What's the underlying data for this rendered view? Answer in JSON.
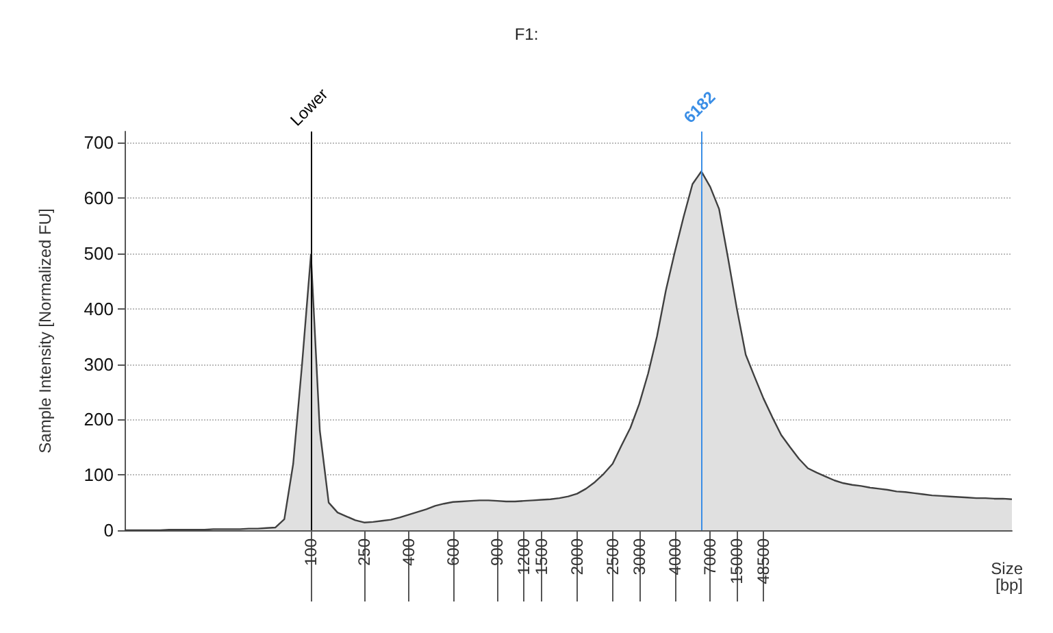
{
  "chart_data": {
    "type": "area",
    "title": "F1:",
    "xlabel": "Size\n[bp]",
    "ylabel": "Sample Intensity [Normalized FU]",
    "categories": [
      null,
      null,
      null,
      null,
      null,
      null,
      null,
      null,
      null,
      null,
      null,
      null,
      null,
      null,
      null,
      null,
      null,
      null,
      null,
      null,
      null,
      "100",
      null,
      null,
      null,
      null,
      null,
      "250",
      null,
      null,
      null,
      null,
      "400",
      null,
      null,
      null,
      null,
      "600",
      null,
      null,
      null,
      null,
      "900",
      null,
      null,
      "1200",
      null,
      "1500",
      null,
      null,
      null,
      "2000",
      null,
      null,
      null,
      "2500",
      null,
      null,
      "3000",
      null,
      null,
      null,
      "4000",
      null,
      null,
      null,
      "7000",
      null,
      null,
      "15000",
      null,
      null,
      "48500",
      null,
      null,
      null,
      null,
      null,
      null,
      null,
      null,
      null,
      null,
      null,
      null,
      null,
      null,
      null,
      null,
      null,
      null,
      null,
      null,
      null,
      null,
      null,
      null,
      null,
      null,
      null,
      null
    ],
    "series": [
      {
        "color": "#404040",
        "values": [
          0,
          0,
          0,
          0,
          0,
          1,
          1,
          1,
          1,
          1,
          2,
          2,
          2,
          2,
          3,
          3,
          4,
          5,
          20,
          120,
          300,
          498,
          180,
          50,
          32,
          25,
          18,
          14,
          15,
          17,
          19,
          23,
          28,
          33,
          38,
          44,
          48,
          51,
          52,
          53,
          54,
          54,
          53,
          52,
          52,
          53,
          54,
          55,
          56,
          58,
          61,
          66,
          75,
          87,
          102,
          120,
          153,
          185,
          228,
          283,
          350,
          433,
          502,
          566,
          625,
          648,
          620,
          580,
          492,
          400,
          317,
          277,
          238,
          204,
          172,
          150,
          129,
          112,
          104,
          97,
          90,
          85,
          82,
          80,
          77,
          75,
          73,
          70,
          69,
          67,
          65,
          63,
          62,
          61,
          60,
          59,
          58,
          58,
          57,
          57,
          56
        ]
      }
    ],
    "ylim": [
      0,
      720
    ],
    "yticks": [
      0,
      100,
      200,
      300,
      400,
      500,
      600,
      700
    ],
    "ref_lines": [
      {
        "axis": "x",
        "value": "100",
        "label": "Lower",
        "color": "#000000"
      }
    ],
    "annotations": [
      {
        "text": "6182",
        "y": 648
      }
    ],
    "grid": "y",
    "marker": "none"
  }
}
